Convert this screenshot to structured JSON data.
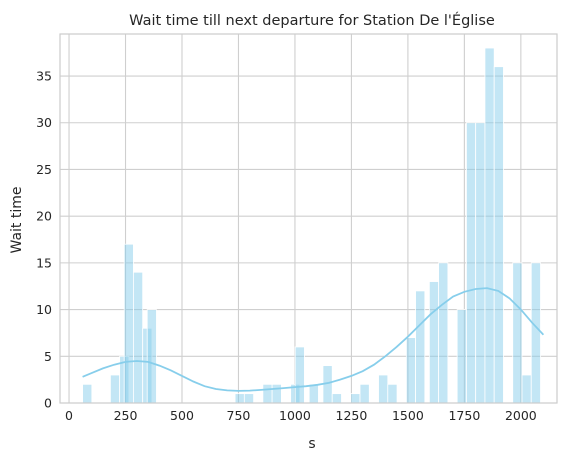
{
  "chart_data": {
    "type": "bar",
    "title": "Wait time till next departure for Station De l'Église",
    "xlabel": "s",
    "ylabel": "Wait time",
    "xlim": [
      -40,
      2160
    ],
    "ylim": [
      0,
      39.5
    ],
    "xticks": [
      0,
      250,
      500,
      750,
      1000,
      1250,
      1500,
      1750,
      2000
    ],
    "yticks": [
      0,
      5,
      10,
      15,
      20,
      25,
      30,
      35
    ],
    "grid": true,
    "color": "#87ceeb",
    "bin_width": 41,
    "bins": [
      {
        "x": 60,
        "count": 2
      },
      {
        "x": 183,
        "count": 3
      },
      {
        "x": 224,
        "count": 5
      },
      {
        "x": 244,
        "count": 17
      },
      {
        "x": 285,
        "count": 14
      },
      {
        "x": 326,
        "count": 8
      },
      {
        "x": 346,
        "count": 10
      },
      {
        "x": 735,
        "count": 1
      },
      {
        "x": 776,
        "count": 1
      },
      {
        "x": 858,
        "count": 2
      },
      {
        "x": 899,
        "count": 2
      },
      {
        "x": 981,
        "count": 2
      },
      {
        "x": 1001,
        "count": 6
      },
      {
        "x": 1063,
        "count": 2
      },
      {
        "x": 1124,
        "count": 4
      },
      {
        "x": 1165,
        "count": 1
      },
      {
        "x": 1247,
        "count": 1
      },
      {
        "x": 1288,
        "count": 2
      },
      {
        "x": 1370,
        "count": 3
      },
      {
        "x": 1411,
        "count": 2
      },
      {
        "x": 1493,
        "count": 7
      },
      {
        "x": 1534,
        "count": 12
      },
      {
        "x": 1595,
        "count": 13
      },
      {
        "x": 1636,
        "count": 15
      },
      {
        "x": 1718,
        "count": 10
      },
      {
        "x": 1759,
        "count": 30
      },
      {
        "x": 1800,
        "count": 30
      },
      {
        "x": 1841,
        "count": 38
      },
      {
        "x": 1882,
        "count": 36
      },
      {
        "x": 1964,
        "count": 15
      },
      {
        "x": 2005,
        "count": 3
      },
      {
        "x": 2046,
        "count": 15
      }
    ],
    "kde": {
      "x": [
        60,
        100,
        150,
        200,
        250,
        300,
        350,
        400,
        450,
        500,
        550,
        600,
        650,
        700,
        750,
        800,
        850,
        900,
        950,
        1000,
        1050,
        1100,
        1150,
        1200,
        1250,
        1300,
        1350,
        1400,
        1450,
        1500,
        1550,
        1600,
        1650,
        1700,
        1750,
        1800,
        1850,
        1900,
        1950,
        2000,
        2050,
        2100
      ],
      "y": [
        2.8,
        3.2,
        3.7,
        4.1,
        4.4,
        4.5,
        4.4,
        4.0,
        3.5,
        2.9,
        2.3,
        1.8,
        1.5,
        1.35,
        1.3,
        1.33,
        1.4,
        1.5,
        1.6,
        1.7,
        1.8,
        1.95,
        2.15,
        2.5,
        2.9,
        3.4,
        4.1,
        5.0,
        6.0,
        7.1,
        8.3,
        9.5,
        10.5,
        11.4,
        11.9,
        12.2,
        12.3,
        12.0,
        11.2,
        10.0,
        8.6,
        7.3
      ]
    }
  }
}
